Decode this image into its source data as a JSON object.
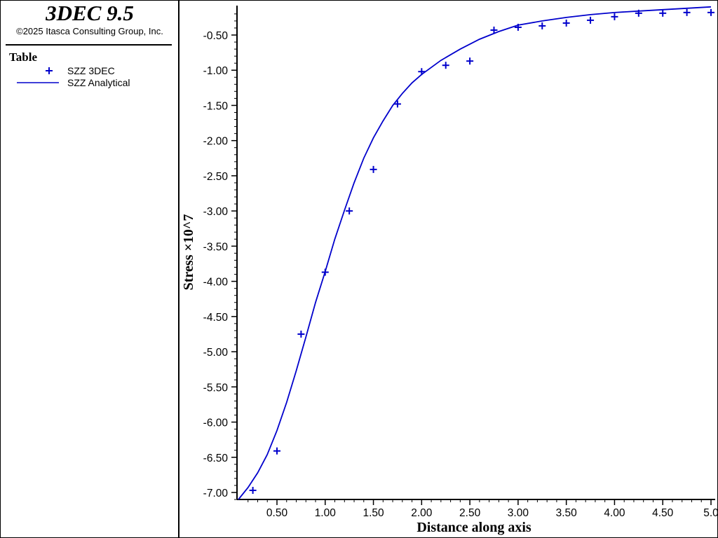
{
  "app": {
    "title": "3DEC 9.5",
    "copyright": "©2025 Itasca Consulting Group, Inc."
  },
  "legend": {
    "title": "Table",
    "items": [
      {
        "label": "SZZ 3DEC",
        "symbol": "plus",
        "color": "#0000cc"
      },
      {
        "label": "SZZ Analytical",
        "symbol": "line",
        "color": "#0000cc"
      }
    ]
  },
  "chart_data": {
    "type": "scatter",
    "xlabel": "Distance along axis",
    "ylabel": "Stress ×10^7",
    "xlim": [
      0.1,
      5.0
    ],
    "ylim": [
      -7.1,
      -0.1
    ],
    "x_ticks": [
      0.5,
      1.0,
      1.5,
      2.0,
      2.5,
      3.0,
      3.5,
      4.0,
      4.5,
      5.0
    ],
    "x_tick_labels": [
      "0.50",
      "1.00",
      "1.50",
      "2.00",
      "2.50",
      "3.00",
      "3.50",
      "4.00",
      "4.50",
      "5.0"
    ],
    "y_ticks": [
      -0.5,
      -1.0,
      -1.5,
      -2.0,
      -2.5,
      -3.0,
      -3.5,
      -4.0,
      -4.5,
      -5.0,
      -5.5,
      -6.0,
      -6.5,
      -7.0
    ],
    "y_tick_labels": [
      "-0.50",
      "-1.00",
      "-1.50",
      "-2.00",
      "-2.50",
      "-3.00",
      "-3.50",
      "-4.00",
      "-4.50",
      "-5.00",
      "-5.50",
      "-6.00",
      "-6.50",
      "-7.00"
    ],
    "grid": false,
    "series": [
      {
        "name": "SZZ 3DEC",
        "kind": "scatter",
        "marker": "plus",
        "color": "#0000cc",
        "x": [
          0.25,
          0.5,
          0.75,
          1.0,
          1.25,
          1.5,
          1.75,
          2.0,
          2.25,
          2.5,
          2.75,
          3.0,
          3.25,
          3.5,
          3.75,
          4.0,
          4.25,
          4.5,
          4.75,
          5.0
        ],
        "y": [
          -6.97,
          -6.41,
          -4.75,
          -3.87,
          -3.0,
          -2.41,
          -1.48,
          -1.02,
          -0.93,
          -0.87,
          -0.43,
          -0.39,
          -0.37,
          -0.33,
          -0.29,
          -0.24,
          -0.19,
          -0.19,
          -0.18,
          -0.18
        ]
      },
      {
        "name": "SZZ Analytical",
        "kind": "line",
        "color": "#0000cc",
        "x": [
          0.1,
          0.2,
          0.3,
          0.4,
          0.5,
          0.6,
          0.7,
          0.8,
          0.9,
          1.0,
          1.1,
          1.2,
          1.3,
          1.4,
          1.5,
          1.6,
          1.7,
          1.8,
          1.9,
          2.0,
          2.2,
          2.4,
          2.6,
          2.8,
          3.0,
          3.25,
          3.5,
          3.75,
          4.0,
          4.25,
          4.5,
          4.75,
          5.0
        ],
        "y": [
          -7.1,
          -6.93,
          -6.72,
          -6.46,
          -6.12,
          -5.72,
          -5.27,
          -4.79,
          -4.3,
          -3.86,
          -3.4,
          -2.99,
          -2.6,
          -2.25,
          -1.96,
          -1.72,
          -1.5,
          -1.33,
          -1.18,
          -1.06,
          -0.86,
          -0.7,
          -0.56,
          -0.45,
          -0.36,
          -0.3,
          -0.25,
          -0.21,
          -0.18,
          -0.16,
          -0.14,
          -0.12,
          -0.1
        ]
      }
    ]
  }
}
